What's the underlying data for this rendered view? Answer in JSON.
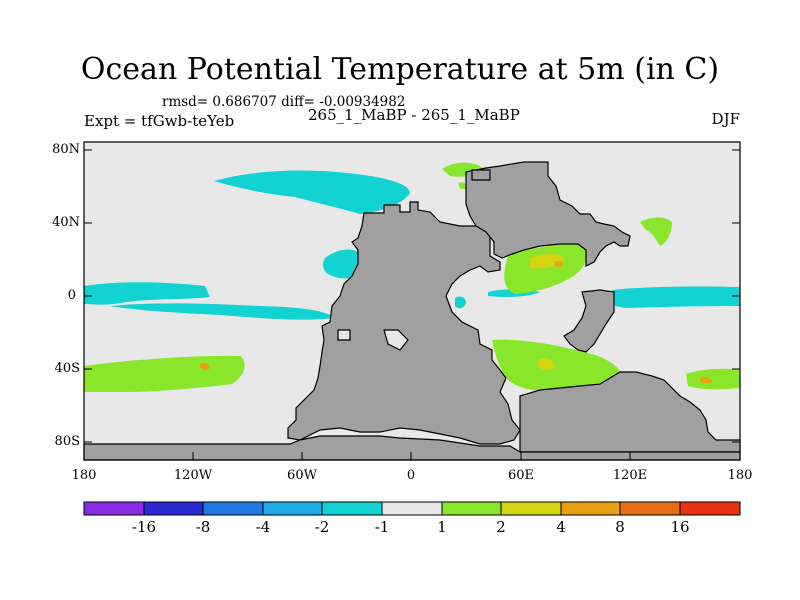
{
  "title": "Ocean Potential Temperature at 5m (in C)",
  "stats": "rmsd= 0.686707 diff= -0.00934982",
  "left_label": "Expt = tfGwb-teYeb",
  "center_label": "265_1_MaBP - 265_1_MaBP",
  "right_label": "DJF",
  "y_ticks": [
    "80N",
    "40N",
    "0",
    "40S",
    "80S"
  ],
  "x_ticks": [
    "180",
    "120W",
    "60W",
    "0",
    "60E",
    "120E",
    "180"
  ],
  "colorbar": {
    "colors": [
      "#8a2be8",
      "#2b2bd4",
      "#1e78e6",
      "#1eaae6",
      "#12d2d2",
      "#e8e8e8",
      "#8ae62a",
      "#d4d412",
      "#e6a012",
      "#e66e12",
      "#e63212"
    ],
    "labels": [
      "-16",
      "-8",
      "-4",
      "-2",
      "-1",
      "1",
      "2",
      "4",
      "8",
      "16"
    ]
  },
  "map_colors": {
    "ocean_neutral": "#e8e8e8",
    "land": "#a0a0a0",
    "cyan_anomaly": "#12d2d2",
    "green_anomaly": "#8ae62a",
    "yellow_anomaly": "#d4d412",
    "orange_anomaly": "#e6a012"
  }
}
